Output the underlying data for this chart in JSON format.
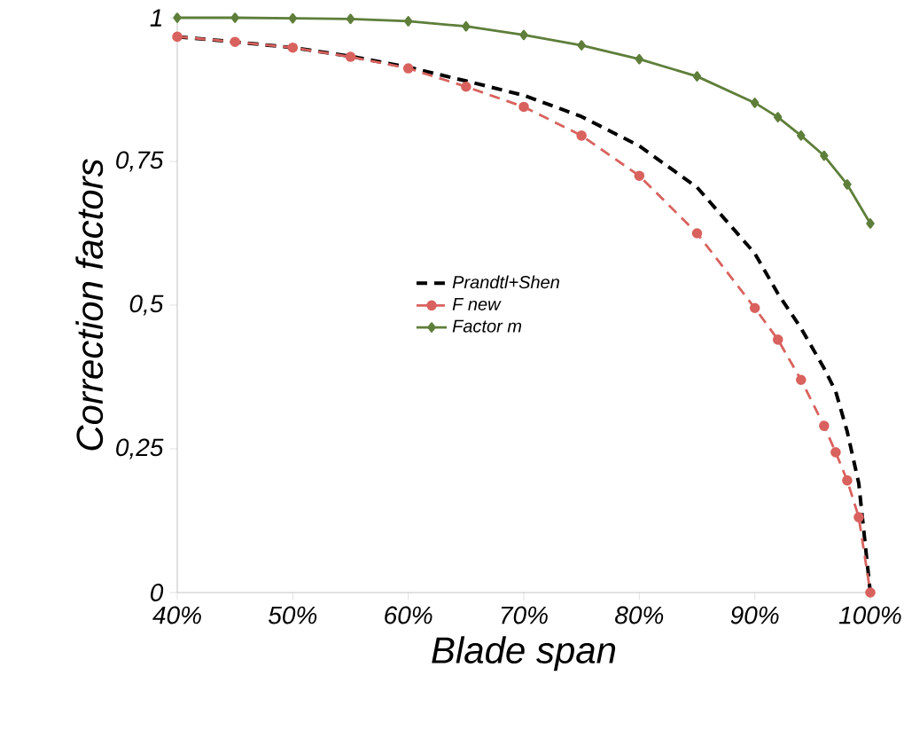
{
  "chart_data": {
    "type": "line",
    "xlabel": "Blade span",
    "ylabel": "Correction factors",
    "xlim": [
      40,
      100
    ],
    "ylim": [
      0,
      1
    ],
    "xticks": [
      {
        "value": 40,
        "label": "40%"
      },
      {
        "value": 50,
        "label": "50%"
      },
      {
        "value": 60,
        "label": "60%"
      },
      {
        "value": 70,
        "label": "70%"
      },
      {
        "value": 80,
        "label": "80%"
      },
      {
        "value": 90,
        "label": "90%"
      },
      {
        "value": 100,
        "label": "100%"
      }
    ],
    "yticks": [
      0,
      {
        "value": 0.25,
        "label": "0,25"
      },
      {
        "value": 0.5,
        "label": "0,5"
      },
      {
        "value": 0.75,
        "label": "0,75"
      },
      1
    ],
    "legend": "center",
    "series": [
      {
        "name": "Prandtl+Shen",
        "color": "#000000",
        "marker": "none",
        "line_style": "dashed",
        "x": [
          40,
          45,
          50,
          55,
          60,
          65,
          70,
          75,
          80,
          85,
          90,
          92,
          94,
          96,
          97,
          98,
          99,
          100
        ],
        "values": [
          0.967,
          0.958,
          0.948,
          0.933,
          0.914,
          0.89,
          0.865,
          0.828,
          0.777,
          0.705,
          0.59,
          0.52,
          0.46,
          0.39,
          0.35,
          0.28,
          0.19,
          0
        ]
      },
      {
        "name": "F new",
        "color": "#d9625e",
        "marker": "circle",
        "line_style": "dashed",
        "x": [
          40,
          45,
          50,
          55,
          60,
          65,
          70,
          75,
          80,
          85,
          90,
          92,
          94,
          96,
          97,
          98,
          99,
          100
        ],
        "values": [
          0.967,
          0.958,
          0.948,
          0.932,
          0.912,
          0.88,
          0.845,
          0.795,
          0.725,
          0.625,
          0.495,
          0.44,
          0.37,
          0.29,
          0.244,
          0.195,
          0.131,
          0
        ]
      },
      {
        "name": "Factor m",
        "color": "#5e7e3a",
        "marker": "diamond",
        "line_style": "solid",
        "x": [
          40,
          45,
          50,
          55,
          60,
          65,
          70,
          75,
          80,
          85,
          90,
          92,
          94,
          96,
          98,
          100
        ],
        "values": [
          1.0,
          1.0,
          0.999,
          0.998,
          0.994,
          0.985,
          0.97,
          0.952,
          0.928,
          0.898,
          0.852,
          0.827,
          0.795,
          0.76,
          0.71,
          0.642
        ]
      }
    ]
  }
}
